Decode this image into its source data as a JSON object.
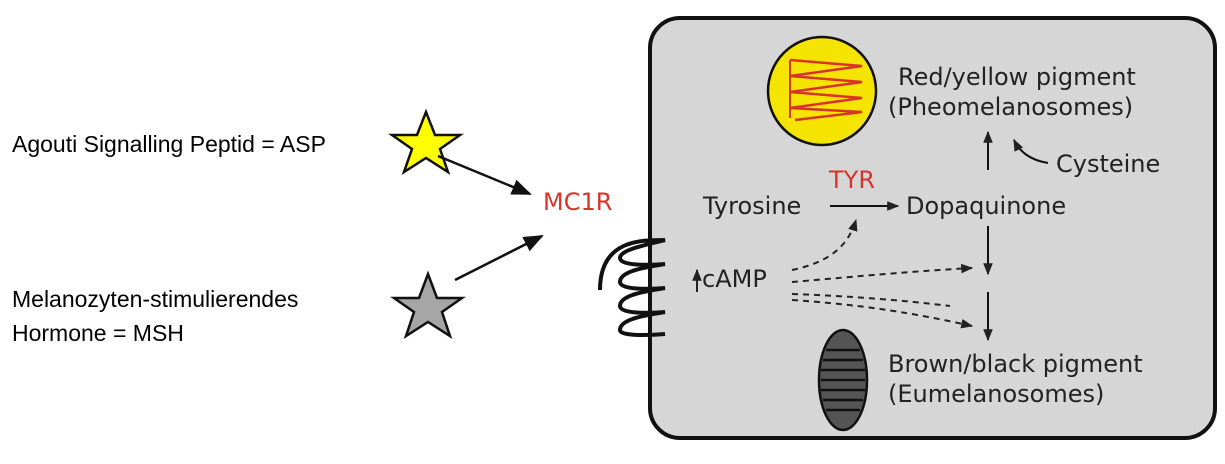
{
  "left_labels": {
    "asp": "Agouti Signalling Peptid = ASP",
    "msh_line1": "Melanozyten-stimulierendes",
    "msh_line2": "Hormone = MSH"
  },
  "receptor": "MC1R",
  "cell": {
    "tyrosine": "Tyrosine",
    "tyr": "TYR",
    "dopaquinone": "Dopaquinone",
    "camp": "cAMP",
    "cysteine": "Cysteine",
    "pheo_line1": "Red/yellow pigment",
    "pheo_line2": "(Pheomelanosomes)",
    "eu_line1": "Brown/black pigment",
    "eu_line2": "(Eumelanosomes)"
  },
  "colors": {
    "asp_star": "#ffff00",
    "msh_star": "#a6a6a6",
    "receptor_text": "#d9342b",
    "cell_fill": "#d6d6d6",
    "pheomelanosome_fill": "#f5e400",
    "pheomelanosome_zigzag": "#d9342b",
    "eumelanosome_fill": "#555555"
  }
}
